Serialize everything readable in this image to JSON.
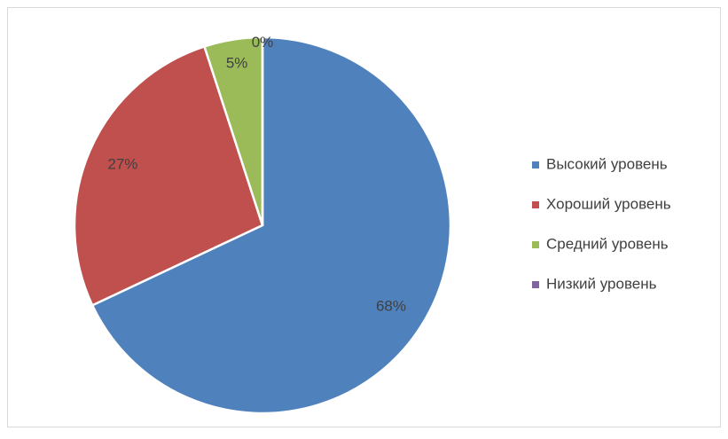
{
  "chart_data": {
    "type": "pie",
    "categories": [
      "Высокий уровень",
      "Хороший уровень",
      "Средний уровень",
      "Низкий уровень"
    ],
    "values": [
      68,
      27,
      5,
      0
    ],
    "value_labels": [
      "68%",
      "27%",
      "5%",
      "0%"
    ],
    "colors": [
      "#4f81bd",
      "#c0504d",
      "#9bbb59",
      "#8064a2"
    ],
    "legend": "right"
  }
}
